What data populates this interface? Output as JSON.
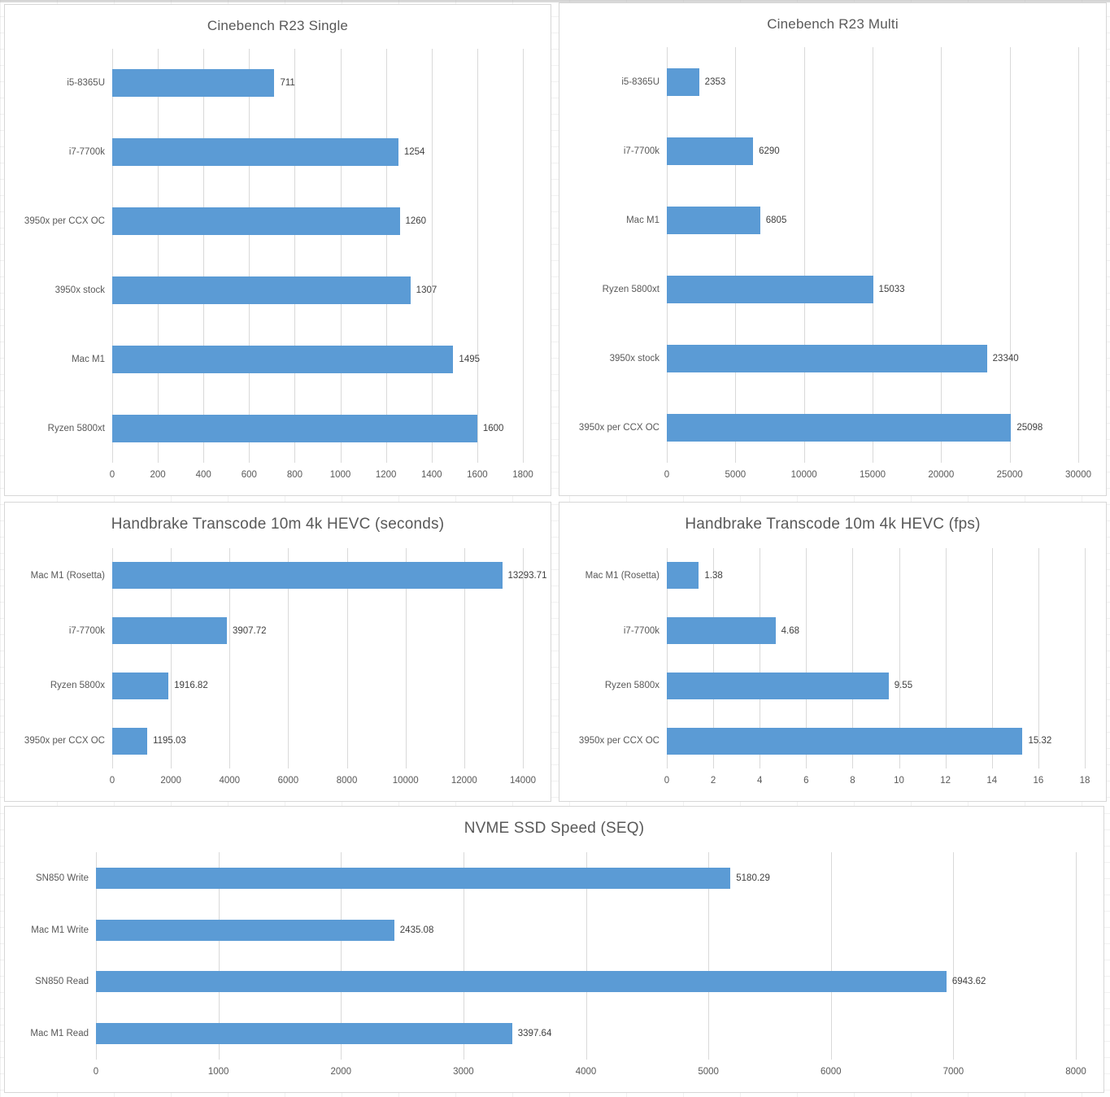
{
  "colors": {
    "bar": "#5b9bd5",
    "gridline": "#d9d9d9",
    "panel_border": "#d7d7d7",
    "title_text": "#595959",
    "axis_text": "#595959",
    "value_text": "#404040"
  },
  "chart_data": [
    {
      "type": "bar",
      "orientation": "horizontal",
      "title": "Cinebench R23 Single",
      "categories": [
        "i5-8365U",
        "i7-7700k",
        "3950x per CCX OC",
        "3950x stock",
        "Mac M1",
        "Ryzen 5800xt"
      ],
      "values": [
        711,
        1254,
        1260,
        1307,
        1495,
        1600
      ],
      "labels": [
        "711",
        "1254",
        "1260",
        "1307",
        "1495",
        "1600"
      ],
      "xlim": [
        0,
        1800
      ],
      "xticks": [
        0,
        200,
        400,
        600,
        800,
        1000,
        1200,
        1400,
        1600,
        1800
      ],
      "grid": true,
      "legend": false
    },
    {
      "type": "bar",
      "orientation": "horizontal",
      "title": "Cinebench R23 Multi",
      "categories": [
        "i5-8365U",
        "i7-7700k",
        "Mac M1",
        "Ryzen 5800xt",
        "3950x stock",
        "3950x per CCX OC"
      ],
      "values": [
        2353,
        6290,
        6805,
        15033,
        23340,
        25098
      ],
      "labels": [
        "2353",
        "6290",
        "6805",
        "15033",
        "23340",
        "25098"
      ],
      "xlim": [
        0,
        30000
      ],
      "xticks": [
        0,
        5000,
        10000,
        15000,
        20000,
        25000,
        30000
      ],
      "grid": true,
      "legend": false
    },
    {
      "type": "bar",
      "orientation": "horizontal",
      "title": "Handbrake Transcode 10m 4k HEVC (seconds)",
      "categories": [
        "Mac M1 (Rosetta)",
        "i7-7700k",
        "Ryzen 5800x",
        "3950x per CCX OC"
      ],
      "values": [
        13293.71,
        3907.72,
        1916.82,
        1195.03
      ],
      "labels": [
        "13293.71",
        "3907.72",
        "1916.82",
        "1195.03"
      ],
      "xlim": [
        0,
        14000
      ],
      "xticks": [
        0,
        2000,
        4000,
        6000,
        8000,
        10000,
        12000,
        14000
      ],
      "grid": true,
      "legend": false
    },
    {
      "type": "bar",
      "orientation": "horizontal",
      "title": "Handbrake Transcode 10m 4k HEVC (fps)",
      "categories": [
        "Mac M1 (Rosetta)",
        "i7-7700k",
        "Ryzen 5800x",
        "3950x per CCX OC"
      ],
      "values": [
        1.38,
        4.68,
        9.55,
        15.32
      ],
      "labels": [
        "1.38",
        "4.68",
        "9.55",
        "15.32"
      ],
      "xlim": [
        0,
        18
      ],
      "xticks": [
        0,
        2,
        4,
        6,
        8,
        10,
        12,
        14,
        16,
        18
      ],
      "grid": true,
      "legend": false
    },
    {
      "type": "bar",
      "orientation": "horizontal",
      "title": "NVME SSD Speed (SEQ)",
      "categories": [
        "SN850 Write",
        "Mac M1 Write",
        "SN850 Read",
        "Mac M1 Read"
      ],
      "values": [
        5180.29,
        2435.08,
        6943.62,
        3397.64
      ],
      "labels": [
        "5180.29",
        "2435.08",
        "6943.62",
        "3397.64"
      ],
      "xlim": [
        0,
        8000
      ],
      "xticks": [
        0,
        1000,
        2000,
        3000,
        4000,
        5000,
        6000,
        7000,
        8000
      ],
      "grid": true,
      "legend": false
    }
  ]
}
